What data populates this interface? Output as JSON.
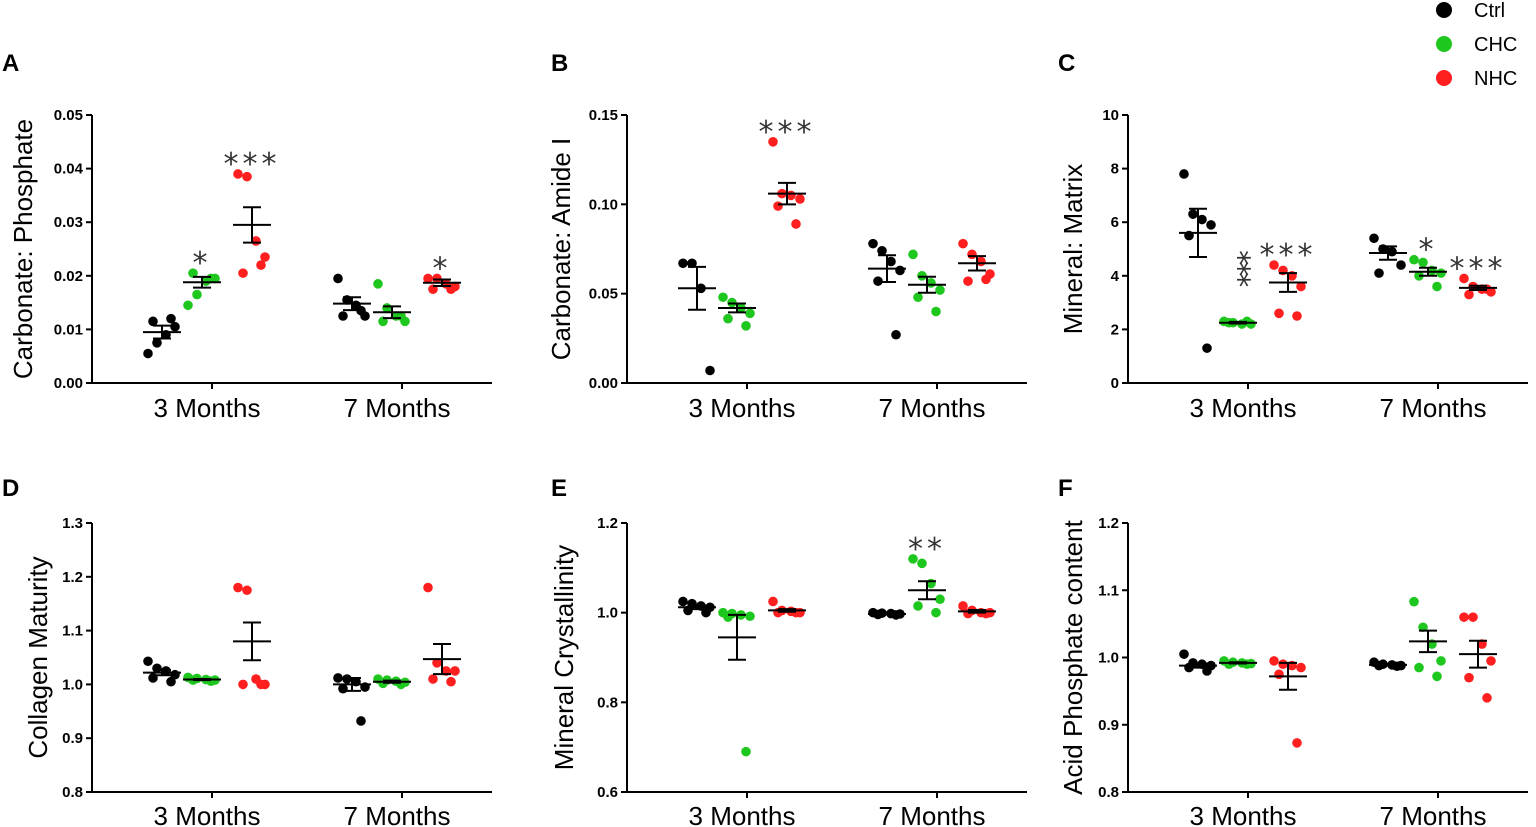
{
  "legend": [
    {
      "label": "Ctrl",
      "color": "#000000"
    },
    {
      "label": "CHC",
      "color": "#1ec71e"
    },
    {
      "label": "NHC",
      "color": "#ff1f1f"
    }
  ],
  "chart_data": [
    {
      "panel": "A",
      "type": "scatter",
      "ylabel": "Carbonate: Phosphate",
      "ylim": [
        0,
        0.05
      ],
      "yticks": [
        "0.00",
        "0.01",
        "0.02",
        "0.03",
        "0.04",
        "0.05"
      ],
      "categories": [
        "3 Months",
        "7 Months"
      ],
      "series": [
        {
          "name": "Ctrl",
          "groups": [
            {
              "points": [
                0.0055,
                0.0075,
                0.009,
                0.0105,
                0.0115,
                0.012
              ],
              "mean": 0.0095,
              "sem": 0.0012
            },
            {
              "points": [
                0.0195,
                0.0155,
                0.0145,
                0.0125,
                0.0125,
                0.0135
              ],
              "mean": 0.0148,
              "sem": 0.0012
            }
          ]
        },
        {
          "name": "CHC",
          "groups": [
            {
              "points": [
                0.0145,
                0.0165,
                0.019,
                0.0195,
                0.0205,
                0.0195
              ],
              "mean": 0.0188,
              "sem": 0.001
            },
            {
              "points": [
                0.0185,
                0.014,
                0.0125,
                0.0115,
                0.0115,
                0.0125
              ],
              "mean": 0.0132,
              "sem": 0.0011
            }
          ]
        },
        {
          "name": "NHC",
          "groups": [
            {
              "points": [
                0.039,
                0.0385,
                0.0265,
                0.0235,
                0.0205,
                0.022
              ],
              "mean": 0.0295,
              "sem": 0.0033
            },
            {
              "points": [
                0.0195,
                0.0195,
                0.0185,
                0.018,
                0.0175,
                0.0175
              ],
              "mean": 0.0187,
              "sem": 0.0006
            }
          ]
        }
      ],
      "annotations": [
        {
          "text": "*",
          "group": 0,
          "series": 1
        },
        {
          "text": "***",
          "group": 0,
          "series": 2
        },
        {
          "text": "*",
          "group": 1,
          "series": 2
        }
      ]
    },
    {
      "panel": "B",
      "type": "scatter",
      "ylabel": "Carbonate: Amide I",
      "ylim": [
        0,
        0.15
      ],
      "yticks": [
        "0.00",
        "0.05",
        "0.10",
        "0.15"
      ],
      "categories": [
        "3 Months",
        "7 Months"
      ],
      "series": [
        {
          "name": "Ctrl",
          "groups": [
            {
              "points": [
                0.067,
                0.067,
                0.053,
                0.007
              ],
              "mean": 0.053,
              "sem": 0.012
            },
            {
              "points": [
                0.078,
                0.074,
                0.068,
                0.063,
                0.057,
                0.027
              ],
              "mean": 0.064,
              "sem": 0.0075
            }
          ]
        },
        {
          "name": "CHC",
          "groups": [
            {
              "points": [
                0.048,
                0.045,
                0.042,
                0.039,
                0.036,
                0.032
              ],
              "mean": 0.042,
              "sem": 0.0025
            },
            {
              "points": [
                0.072,
                0.06,
                0.056,
                0.052,
                0.048,
                0.04
              ],
              "mean": 0.055,
              "sem": 0.0045
            }
          ]
        },
        {
          "name": "NHC",
          "groups": [
            {
              "points": [
                0.135,
                0.106,
                0.105,
                0.103,
                0.099,
                0.089
              ],
              "mean": 0.106,
              "sem": 0.006
            },
            {
              "points": [
                0.078,
                0.072,
                0.068,
                0.061,
                0.057,
                0.058
              ],
              "mean": 0.067,
              "sem": 0.004
            }
          ]
        }
      ],
      "annotations": [
        {
          "text": "***",
          "group": 0,
          "series": 2
        }
      ]
    },
    {
      "panel": "C",
      "type": "scatter",
      "ylabel": "Mineral: Matrix",
      "ylim": [
        0,
        10
      ],
      "yticks": [
        "0",
        "2",
        "4",
        "6",
        "8",
        "10"
      ],
      "categories": [
        "3 Months",
        "7 Months"
      ],
      "series": [
        {
          "name": "Ctrl",
          "groups": [
            {
              "points": [
                7.8,
                6.3,
                6.1,
                5.9,
                5.5,
                1.3
              ],
              "mean": 5.6,
              "sem": 0.9
            },
            {
              "points": [
                5.4,
                5.0,
                4.9,
                4.4,
                4.1
              ],
              "mean": 4.85,
              "sem": 0.25
            }
          ]
        },
        {
          "name": "CHC",
          "groups": [
            {
              "points": [
                2.3,
                2.25,
                2.2,
                2.2,
                2.25,
                2.3
              ],
              "mean": 2.25,
              "sem": 0.03
            },
            {
              "points": [
                4.6,
                4.5,
                4.2,
                4.1,
                4.0,
                3.6
              ],
              "mean": 4.15,
              "sem": 0.15
            }
          ]
        },
        {
          "name": "NHC",
          "groups": [
            {
              "points": [
                4.4,
                4.2,
                4.0,
                3.6,
                2.6,
                2.5
              ],
              "mean": 3.75,
              "sem": 0.35
            },
            {
              "points": [
                3.9,
                3.6,
                3.5,
                3.4,
                3.3,
                3.5
              ],
              "mean": 3.55,
              "sem": 0.08
            }
          ]
        }
      ],
      "annotations": [
        {
          "text": "***",
          "group": 0,
          "series": 1,
          "vertical": true
        },
        {
          "text": "***",
          "group": 0,
          "series": 2
        },
        {
          "text": "*",
          "group": 1,
          "series": 1
        },
        {
          "text": "***",
          "group": 1,
          "series": 2
        }
      ]
    },
    {
      "panel": "D",
      "type": "scatter",
      "ylabel": "Collagen Maturity",
      "ylim": [
        0.8,
        1.3
      ],
      "yticks": [
        "0.8",
        "0.9",
        "1.0",
        "1.1",
        "1.2",
        "1.3"
      ],
      "categories": [
        "3 Months",
        "7 Months"
      ],
      "series": [
        {
          "name": "Ctrl",
          "groups": [
            {
              "points": [
                1.043,
                1.03,
                1.025,
                1.018,
                1.012,
                1.005
              ],
              "mean": 1.022,
              "sem": 0.005
            },
            {
              "points": [
                1.012,
                1.01,
                1.005,
                0.995,
                0.992,
                0.932
              ],
              "mean": 1.0,
              "sem": 0.012
            }
          ]
        },
        {
          "name": "CHC",
          "groups": [
            {
              "points": [
                1.013,
                1.011,
                1.009,
                1.008,
                1.008,
                1.006
              ],
              "mean": 1.009,
              "sem": 0.001
            },
            {
              "points": [
                1.01,
                1.008,
                1.006,
                1.004,
                1.002,
                1.0
              ],
              "mean": 1.005,
              "sem": 0.002
            }
          ]
        },
        {
          "name": "NHC",
          "groups": [
            {
              "points": [
                1.18,
                1.175,
                1.01,
                1.0,
                1.0,
                1.0
              ],
              "mean": 1.08,
              "sem": 0.035
            },
            {
              "points": [
                1.18,
                1.04,
                1.025,
                1.025,
                1.01,
                1.005
              ],
              "mean": 1.047,
              "sem": 0.028
            }
          ]
        }
      ],
      "annotations": []
    },
    {
      "panel": "E",
      "type": "scatter",
      "ylabel": "Mineral Crystallinity",
      "ylim": [
        0.6,
        1.2
      ],
      "yticks": [
        "0.6",
        "0.8",
        "1.0",
        "1.2"
      ],
      "categories": [
        "3 Months",
        "7 Months"
      ],
      "series": [
        {
          "name": "Ctrl",
          "groups": [
            {
              "points": [
                1.025,
                1.02,
                1.015,
                1.012,
                1.005,
                1.0
              ],
              "mean": 1.012,
              "sem": 0.004
            },
            {
              "points": [
                1.0,
                0.999,
                0.998,
                0.997,
                0.996,
                0.995
              ],
              "mean": 0.997,
              "sem": 0.001
            }
          ]
        },
        {
          "name": "CHC",
          "groups": [
            {
              "points": [
                1.0,
                0.998,
                0.995,
                0.992,
                0.99,
                0.69
              ],
              "mean": 0.945,
              "sem": 0.05
            },
            {
              "points": [
                1.12,
                1.11,
                1.065,
                1.03,
                1.015,
                1.0
              ],
              "mean": 1.05,
              "sem": 0.02
            }
          ]
        },
        {
          "name": "NHC",
          "groups": [
            {
              "points": [
                1.025,
                1.005,
                1.003,
                1.0,
                1.0,
                1.0
              ],
              "mean": 1.005,
              "sem": 0.003
            },
            {
              "points": [
                1.015,
                1.005,
                1.0,
                1.0,
                0.998,
                0.998
              ],
              "mean": 1.003,
              "sem": 0.003
            }
          ]
        }
      ],
      "annotations": [
        {
          "text": "**",
          "group": 1,
          "series": 1
        }
      ]
    },
    {
      "panel": "F",
      "type": "scatter",
      "ylabel": "Acid Phosphate content",
      "ylim": [
        0.8,
        1.2
      ],
      "yticks": [
        "0.8",
        "0.9",
        "1.0",
        "1.1",
        "1.2"
      ],
      "categories": [
        "3 Months",
        "7 Months"
      ],
      "series": [
        {
          "name": "Ctrl",
          "groups": [
            {
              "points": [
                1.005,
                0.992,
                0.99,
                0.988,
                0.985,
                0.98
              ],
              "mean": 0.988,
              "sem": 0.003
            },
            {
              "points": [
                0.993,
                0.99,
                0.989,
                0.988,
                0.988,
                0.987
              ],
              "mean": 0.989,
              "sem": 0.001
            }
          ]
        },
        {
          "name": "CHC",
          "groups": [
            {
              "points": [
                0.995,
                0.993,
                0.992,
                0.991,
                0.99,
                0.99
              ],
              "mean": 0.992,
              "sem": 0.001
            },
            {
              "points": [
                1.083,
                1.045,
                1.02,
                0.995,
                0.985,
                0.972
              ],
              "mean": 1.024,
              "sem": 0.016
            }
          ]
        },
        {
          "name": "NHC",
          "groups": [
            {
              "points": [
                0.995,
                0.99,
                0.988,
                0.985,
                0.975,
                0.873
              ],
              "mean": 0.972,
              "sem": 0.02
            },
            {
              "points": [
                1.06,
                1.06,
                1.02,
                0.995,
                0.97,
                0.94
              ],
              "mean": 1.005,
              "sem": 0.02
            }
          ]
        }
      ],
      "annotations": []
    }
  ]
}
